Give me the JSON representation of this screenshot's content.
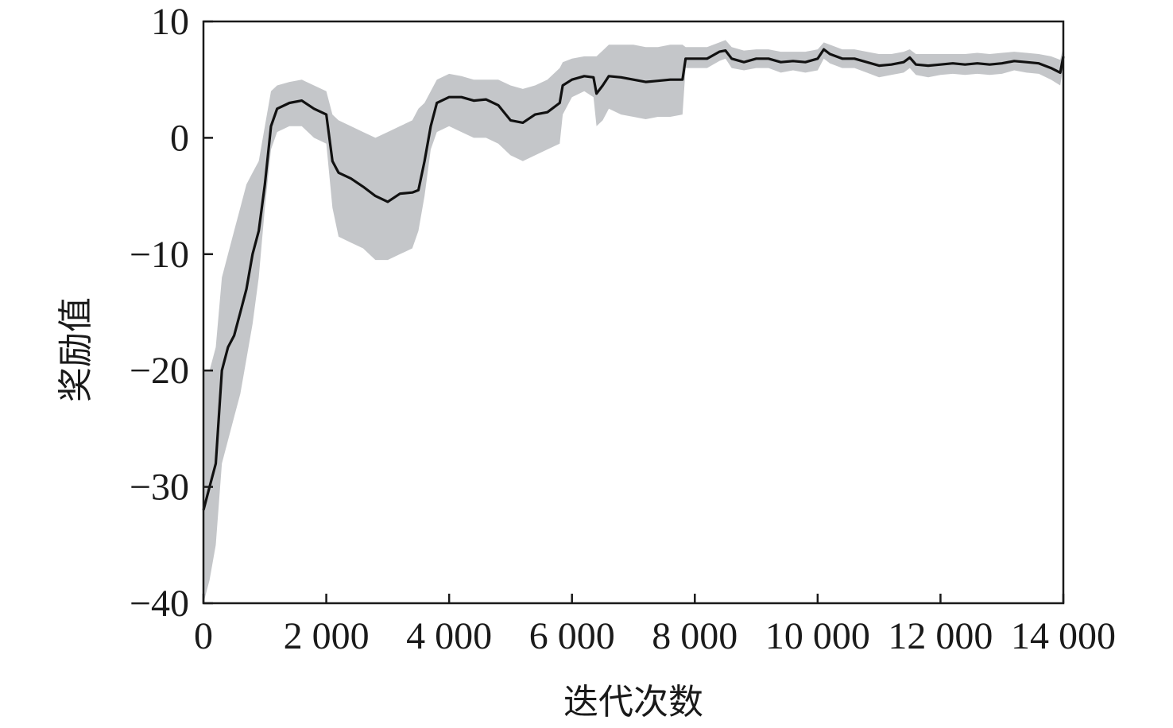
{
  "chart_data": {
    "type": "line",
    "title": "",
    "xlabel": "迭代次数",
    "ylabel": "奖励值",
    "xlim": [
      0,
      14000
    ],
    "ylim": [
      -40,
      10
    ],
    "grid": false,
    "legend": "none",
    "xticks": [
      {
        "value": 0,
        "label": "0"
      },
      {
        "value": 2000,
        "label": "2 000"
      },
      {
        "value": 4000,
        "label": "4 000"
      },
      {
        "value": 6000,
        "label": "6 000"
      },
      {
        "value": 8000,
        "label": "8 000"
      },
      {
        "value": 10000,
        "label": "10 000"
      },
      {
        "value": 12000,
        "label": "12 000"
      },
      {
        "value": 14000,
        "label": "14 000"
      }
    ],
    "yticks": [
      {
        "value": 10,
        "label": "10"
      },
      {
        "value": 0,
        "label": "0"
      },
      {
        "value": -10,
        "label": "−10"
      },
      {
        "value": -20,
        "label": "−20"
      },
      {
        "value": -30,
        "label": "−30"
      },
      {
        "value": -40,
        "label": "−40"
      }
    ],
    "colors": {
      "line": "#111111",
      "band": "#c4c6c9",
      "axis": "#1a1a1a"
    },
    "series": [
      {
        "x": [
          0,
          100,
          200,
          300,
          400,
          500,
          600,
          700,
          800,
          900,
          1000,
          1100,
          1200,
          1400,
          1600,
          1800,
          2000,
          2100,
          2200,
          2400,
          2600,
          2800,
          3000,
          3200,
          3400,
          3500,
          3600,
          3700,
          3800,
          4000,
          4200,
          4400,
          4600,
          4800,
          5000,
          5200,
          5400,
          5600,
          5800,
          5850,
          6000,
          6200,
          6350,
          6400,
          6500,
          6600,
          6800,
          7000,
          7200,
          7400,
          7600,
          7800,
          7850,
          8000,
          8200,
          8400,
          8500,
          8600,
          8800,
          9000,
          9200,
          9400,
          9600,
          9800,
          10000,
          10100,
          10200,
          10400,
          10600,
          10800,
          11000,
          11200,
          11400,
          11500,
          11600,
          11800,
          12000,
          12200,
          12400,
          12600,
          12800,
          13000,
          13200,
          13400,
          13600,
          13800,
          13950,
          14000
        ],
        "y": [
          -32,
          -30,
          -28,
          -20,
          -18,
          -17,
          -15,
          -13,
          -10,
          -8,
          -4,
          1,
          2.5,
          3,
          3.2,
          2.5,
          2,
          -2,
          -3,
          -3.5,
          -4.2,
          -5,
          -5.5,
          -4.8,
          -4.7,
          -4.5,
          -2,
          1,
          3,
          3.5,
          3.5,
          3.2,
          3.3,
          2.8,
          1.5,
          1.3,
          2,
          2.2,
          3,
          4.5,
          5,
          5.3,
          5.2,
          3.8,
          4.5,
          5.3,
          5.2,
          5,
          4.8,
          4.9,
          5,
          5,
          6.8,
          6.8,
          6.8,
          7.4,
          7.5,
          6.8,
          6.5,
          6.8,
          6.8,
          6.5,
          6.6,
          6.5,
          6.8,
          7.6,
          7.2,
          6.8,
          6.8,
          6.5,
          6.2,
          6.3,
          6.5,
          6.9,
          6.3,
          6.2,
          6.3,
          6.4,
          6.3,
          6.4,
          6.3,
          6.4,
          6.6,
          6.5,
          6.4,
          6.0,
          5.6,
          7.0
        ],
        "upper": [
          -20,
          -20,
          -18,
          -12,
          -10,
          -8,
          -6,
          -4,
          -3,
          -2,
          1,
          4,
          4.5,
          4.8,
          5,
          4.5,
          4,
          2,
          1.5,
          1,
          0.5,
          0,
          0.5,
          1,
          1.5,
          2.5,
          3,
          4,
          5,
          5.5,
          5.3,
          5,
          5,
          5,
          4.5,
          4.2,
          4.5,
          5,
          6,
          6.5,
          6.8,
          7,
          7,
          7,
          7.5,
          8,
          8,
          8,
          7.8,
          7.8,
          8,
          8,
          7.8,
          7.8,
          7.8,
          8.2,
          8.4,
          7.8,
          7.5,
          7.6,
          7.6,
          7.4,
          7.4,
          7.4,
          7.6,
          8.2,
          8,
          7.6,
          7.6,
          7.4,
          7.2,
          7.2,
          7.4,
          7.6,
          7.2,
          7.2,
          7.2,
          7.2,
          7.2,
          7.3,
          7.2,
          7.3,
          7.4,
          7.3,
          7.2,
          7.0,
          6.7,
          7.8
        ],
        "lower": [
          -40,
          -38,
          -35,
          -28,
          -26,
          -24,
          -22,
          -19,
          -16,
          -12,
          -6,
          -1,
          0.5,
          1,
          1,
          0,
          -0.5,
          -6,
          -8.5,
          -9,
          -9.5,
          -10.5,
          -10.5,
          -10,
          -9.5,
          -8,
          -5,
          -1,
          0.5,
          1,
          0.5,
          0,
          0,
          -0.5,
          -1.5,
          -2,
          -1.5,
          -1,
          -0.5,
          2,
          3.5,
          4,
          3.5,
          1,
          1.5,
          2.5,
          2,
          1.8,
          1.6,
          1.8,
          1.8,
          2,
          6,
          6,
          6,
          6.6,
          6.8,
          6,
          5.8,
          6.0,
          6.0,
          5.6,
          5.8,
          5.6,
          5.8,
          6.8,
          6.4,
          6.0,
          6.0,
          5.6,
          5.2,
          5.4,
          5.6,
          6.0,
          5.4,
          5.2,
          5.4,
          5.5,
          5.4,
          5.5,
          5.4,
          5.5,
          5.8,
          5.6,
          5.5,
          5.0,
          4.5,
          6.2
        ]
      }
    ]
  }
}
